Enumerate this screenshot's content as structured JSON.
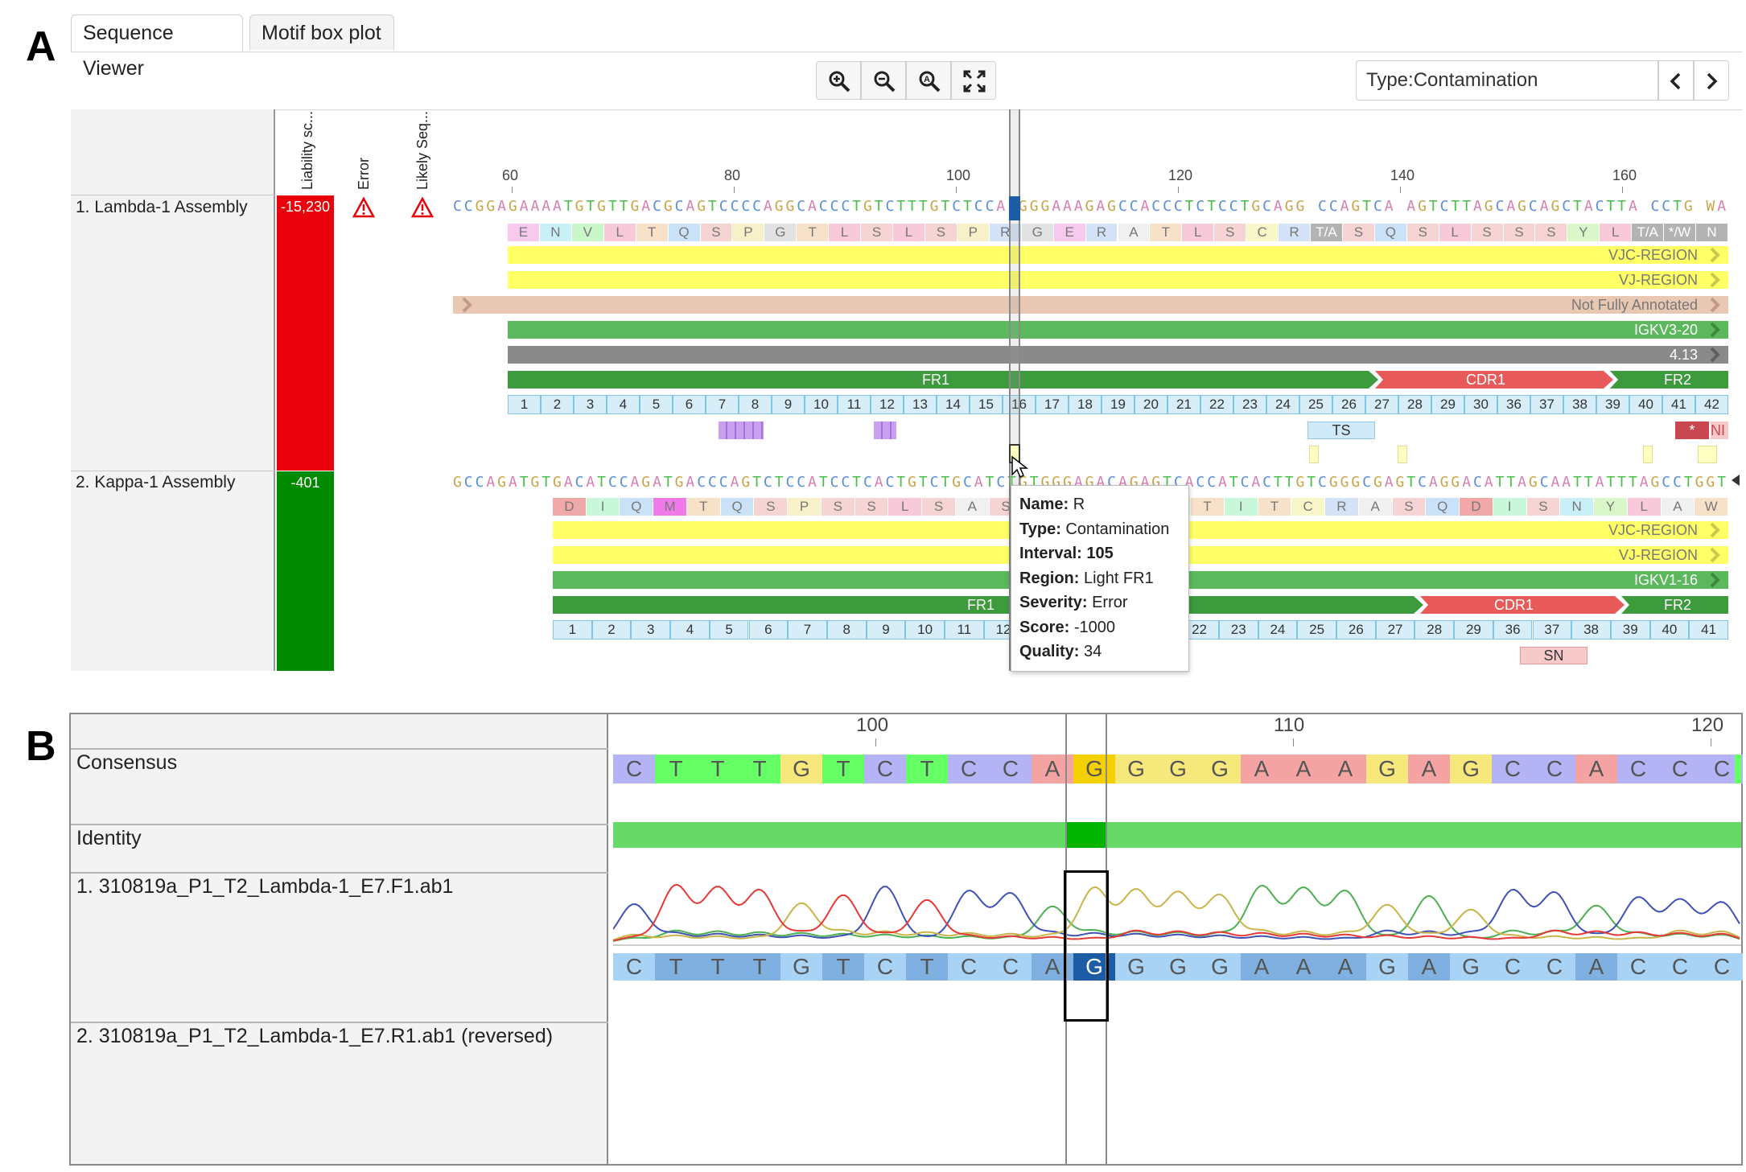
{
  "panels": {
    "a": "A",
    "b": "B"
  },
  "tabs": [
    {
      "label": "Sequence Viewer",
      "active": true
    },
    {
      "label": "Motif box plot",
      "active": false
    }
  ],
  "toolbar": {
    "icons": [
      "zoom-in-icon",
      "zoom-out-icon",
      "zoom-reset-icon",
      "fit-to-screen-icon"
    ]
  },
  "filter": {
    "value": "Type:Contamination"
  },
  "column_headers": [
    "Liability sc...",
    "Error",
    "Likely Seq..."
  ],
  "ruler_a": [
    "60",
    "80",
    "100",
    "120",
    "140",
    "160"
  ],
  "rows": [
    {
      "label": "1. Lambda-1 Assembly",
      "score": "-15,230",
      "score_color": "#e8000b",
      "sequence": "CCGGAGAAAATGTGTTGACGCAGTCCCCAGGCACCCTGTCTTTGTCTCCARGGGAAAGAGCCACCCTCTCCTGCAGGRCCAGTCARAGTCTTAGCAGCAGCTACTTARCCTGRWA",
      "amino_acids": [
        "E",
        "N",
        "V",
        "L",
        "T",
        "Q",
        "S",
        "P",
        "G",
        "T",
        "L",
        "S",
        "L",
        "S",
        "P",
        "R",
        "G",
        "E",
        "R",
        "A",
        "T",
        "L",
        "S",
        "C",
        "R",
        "T/A",
        "S",
        "Q",
        "S",
        "L",
        "S",
        "S",
        "S",
        "Y",
        "L",
        "T/A",
        "*/W",
        "N"
      ],
      "annotations": [
        "VJC-REGION",
        "VJ-REGION",
        "Not Fully Annotated",
        "IGKV3-20",
        "4.13"
      ],
      "regions": [
        "FR1",
        "CDR1",
        "FR2"
      ],
      "positions": [
        "1",
        "2",
        "3",
        "4",
        "5",
        "6",
        "7",
        "8",
        "9",
        "10",
        "11",
        "12",
        "13",
        "14",
        "15",
        "16",
        "17",
        "18",
        "19",
        "20",
        "21",
        "22",
        "23",
        "24",
        "25",
        "26",
        "27",
        "28",
        "29",
        "30",
        "36",
        "37",
        "38",
        "39",
        "40",
        "41",
        "42"
      ],
      "motifs": [
        "TS",
        "*",
        "NI"
      ]
    },
    {
      "label": "2. Kappa-1 Assembly",
      "score": "-401",
      "score_color": "#008a00",
      "sequence": "GCCAGATGTGACATCCAGATGACCCAGTCTCCATCCTCACTGTCTGCATCTGTGGGAGACAGAGTCACCATCACTTGTCGGGCGAGTCAGGACATTAGCAATTATTTAGCCTGGT",
      "amino_acids": [
        "D",
        "I",
        "Q",
        "M",
        "T",
        "Q",
        "S",
        "P",
        "S",
        "S",
        "L",
        "S",
        "A",
        "S",
        "V",
        "G",
        "D",
        "R",
        "V",
        "T",
        "I",
        "T",
        "C",
        "R",
        "A",
        "S",
        "Q",
        "D",
        "I",
        "S",
        "N",
        "Y",
        "L",
        "A",
        "W"
      ],
      "annotations": [
        "VJC-REGION",
        "VJ-REGION",
        "IGKV1-16"
      ],
      "regions": [
        "FR1",
        "CDR1",
        "FR2"
      ],
      "positions": [
        "1",
        "2",
        "3",
        "4",
        "5",
        "6",
        "7",
        "8",
        "9",
        "10",
        "11",
        "12",
        "13",
        "14",
        "20",
        "21",
        "22",
        "23",
        "24",
        "25",
        "26",
        "27",
        "28",
        "29",
        "36",
        "37",
        "38",
        "39",
        "40",
        "41"
      ],
      "motifs": [
        "SN"
      ]
    }
  ],
  "tooltip": [
    {
      "key": "Name:",
      "value": "R"
    },
    {
      "key": "Type:",
      "value": "Contamination"
    },
    {
      "key": "Interval:",
      "value": "105"
    },
    {
      "key": "Region:",
      "value": "Light FR1"
    },
    {
      "key": "Severity:",
      "value": "Error"
    },
    {
      "key": "Score:",
      "value": "-1000"
    },
    {
      "key": "Quality:",
      "value": "34"
    }
  ],
  "trace": {
    "ruler": [
      "100",
      "110",
      "120"
    ],
    "consensus_label": "Consensus",
    "identity_label": "Identity",
    "read1_label": "1. 310819a_P1_T2_Lambda-1_E7.F1.ab1",
    "read2_label": "2. 310819a_P1_T2_Lambda-1_E7.R1.ab1 (reversed)",
    "consensus": [
      "C",
      "T",
      "T",
      "T",
      "G",
      "T",
      "C",
      "T",
      "C",
      "C",
      "A",
      "G",
      "G",
      "G",
      "G",
      "A",
      "A",
      "A",
      "G",
      "A",
      "G",
      "C",
      "C",
      "A",
      "C",
      "C",
      "C"
    ],
    "read1": [
      "C",
      "T",
      "T",
      "T",
      "G",
      "T",
      "C",
      "T",
      "C",
      "C",
      "A",
      "G",
      "G",
      "G",
      "G",
      "A",
      "A",
      "A",
      "G",
      "A",
      "G",
      "C",
      "C",
      "A",
      "C",
      "C",
      "C"
    ],
    "colors": {
      "A": "#f4a3a3",
      "C": "#b3b3f5",
      "G": "#f6e87a",
      "T": "#66ff66",
      "selected": "#f5d000"
    }
  }
}
